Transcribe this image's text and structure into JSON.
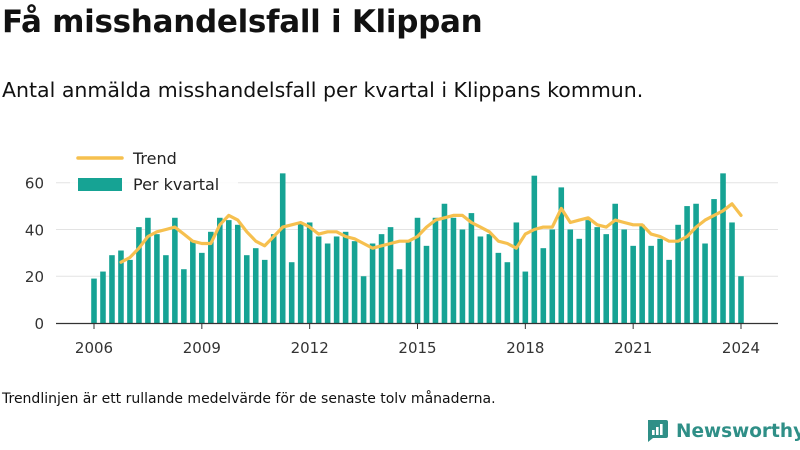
{
  "title": "Få misshandelsfall i Klippan",
  "subtitle": "Antal anmälda misshandelsfall per kvartal i Klippans kommun.",
  "footnote": "Trendlinjen är ett rullande medelvärde för de senaste tolv månaderna.",
  "brand": {
    "name": "Newsworthy",
    "icon": "newsworthy-logo-icon",
    "color": "#2f8f87"
  },
  "chart_data": {
    "type": "bar",
    "x_unit": "year-quarter",
    "x": [
      "2006Q1",
      "2006Q2",
      "2006Q3",
      "2006Q4",
      "2007Q1",
      "2007Q2",
      "2007Q3",
      "2007Q4",
      "2008Q1",
      "2008Q2",
      "2008Q3",
      "2008Q4",
      "2009Q1",
      "2009Q2",
      "2009Q3",
      "2009Q4",
      "2010Q1",
      "2010Q2",
      "2010Q3",
      "2010Q4",
      "2011Q1",
      "2011Q2",
      "2011Q3",
      "2011Q4",
      "2012Q1",
      "2012Q2",
      "2012Q3",
      "2012Q4",
      "2013Q1",
      "2013Q2",
      "2013Q3",
      "2013Q4",
      "2014Q1",
      "2014Q2",
      "2014Q3",
      "2014Q4",
      "2015Q1",
      "2015Q2",
      "2015Q3",
      "2015Q4",
      "2016Q1",
      "2016Q2",
      "2016Q3",
      "2016Q4",
      "2017Q1",
      "2017Q2",
      "2017Q3",
      "2017Q4",
      "2018Q1",
      "2018Q2",
      "2018Q3",
      "2018Q4",
      "2019Q1",
      "2019Q2",
      "2019Q3",
      "2019Q4",
      "2020Q1",
      "2020Q2",
      "2020Q3",
      "2020Q4",
      "2021Q1",
      "2021Q2",
      "2021Q3",
      "2021Q4",
      "2022Q1",
      "2022Q2",
      "2022Q3",
      "2022Q4",
      "2023Q1",
      "2023Q2",
      "2023Q3",
      "2023Q4",
      "2024Q1"
    ],
    "series": [
      {
        "name": "Per kvartal",
        "color": "#16a394",
        "values": [
          19,
          22,
          29,
          31,
          27,
          41,
          45,
          38,
          29,
          45,
          23,
          35,
          30,
          39,
          45,
          44,
          42,
          29,
          32,
          27,
          38,
          64,
          26,
          43,
          43,
          37,
          34,
          37,
          39,
          35,
          20,
          34,
          38,
          41,
          23,
          35,
          45,
          33,
          45,
          51,
          45,
          40,
          47,
          37,
          38,
          30,
          26,
          43,
          22,
          63,
          32,
          40,
          58,
          40,
          36,
          44,
          41,
          38,
          51,
          40,
          33,
          42,
          33,
          36,
          27,
          42,
          50,
          51,
          34,
          53,
          64,
          43,
          20
        ]
      },
      {
        "name": "Trend",
        "color": "#f6c04f",
        "values": [
          null,
          null,
          null,
          26,
          28,
          32,
          37,
          39,
          40,
          41,
          38,
          35,
          34,
          34,
          42,
          46,
          44,
          39,
          35,
          33,
          37,
          41,
          42,
          43,
          41,
          38,
          39,
          39,
          37,
          36,
          34,
          32,
          33,
          34,
          35,
          35,
          37,
          41,
          44,
          45,
          46,
          46,
          43,
          41,
          39,
          35,
          34,
          32,
          38,
          40,
          41,
          41,
          49,
          43,
          44,
          45,
          42,
          41,
          44,
          43,
          42,
          42,
          38,
          37,
          35,
          35,
          37,
          41,
          44,
          46,
          48,
          51,
          46
        ]
      }
    ],
    "x_ticks": [
      "2006",
      "2009",
      "2012",
      "2015",
      "2018",
      "2021",
      "2024"
    ],
    "ylim": [
      0,
      68
    ],
    "y_ticks": [
      0,
      20,
      40,
      60
    ],
    "grid": true,
    "legend_position": "top-left"
  }
}
